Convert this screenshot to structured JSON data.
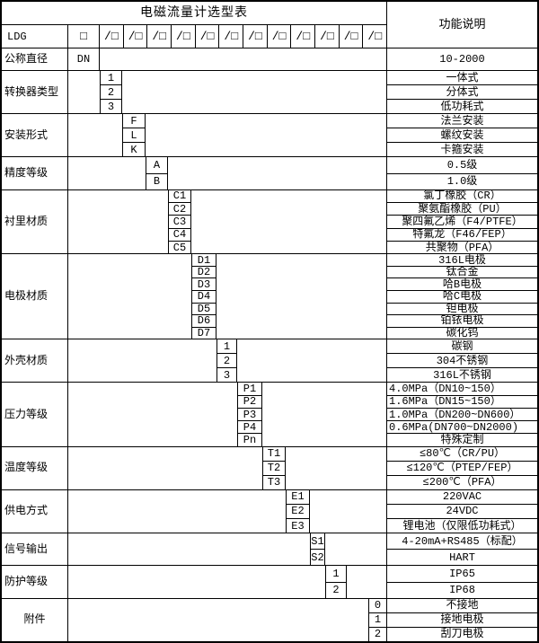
{
  "table": {
    "title": "电磁流量计选型表",
    "function_column_header": "功能说明",
    "model_code": "LDG",
    "code_box_symbol": "□",
    "code_slot_symbol": "/□",
    "code_slot_count": 12,
    "groups": [
      {
        "label": "公称直径",
        "codes": [
          "DN"
        ],
        "functions": [
          "10-2000"
        ]
      },
      {
        "label": "转换器类型",
        "codes": [
          "1",
          "2",
          "3"
        ],
        "functions": [
          "一体式",
          "分体式",
          "低功耗式"
        ]
      },
      {
        "label": "安装形式",
        "codes": [
          "F",
          "L",
          "K"
        ],
        "functions": [
          "法兰安装",
          "螺纹安装",
          "卡箍安装"
        ]
      },
      {
        "label": "精度等级",
        "codes": [
          "A",
          "B"
        ],
        "functions": [
          "0.5级",
          "1.0级"
        ]
      },
      {
        "label": "衬里材质",
        "codes": [
          "C1",
          "C2",
          "C3",
          "C4",
          "C5"
        ],
        "functions": [
          "氯丁橡胶（CR）",
          "聚氨酯橡胶（PU）",
          "聚四氟乙烯（F4/PTFE）",
          "特氟龙（F46/FEP）",
          "共聚物（PFA）"
        ]
      },
      {
        "label": "电极材质",
        "codes": [
          "D1",
          "D2",
          "D3",
          "D4",
          "D5",
          "D6",
          "D7"
        ],
        "functions": [
          "316L电极",
          "钛合金",
          "哈B电极",
          "哈C电极",
          "钽电极",
          "铂铱电极",
          "碳化钨"
        ]
      },
      {
        "label": "外壳材质",
        "codes": [
          "1",
          "2",
          "3"
        ],
        "functions": [
          "碳钢",
          "304不锈钢",
          "316L不锈钢"
        ]
      },
      {
        "label": "压力等级",
        "codes": [
          "P1",
          "P2",
          "P3",
          "P4",
          "Pn"
        ],
        "functions": [
          "4.0MPa（DN10~150）",
          "1.6MPa（DN15~150）",
          "1.0MPa（DN200~DN600）",
          "0.6MPa(DN700~DN2000)",
          "特殊定制"
        ]
      },
      {
        "label": "温度等级",
        "codes": [
          "T1",
          "T2",
          "T3"
        ],
        "functions": [
          "≤80℃（CR/PU）",
          "≤120℃（PTEP/FEP）",
          "≤200℃（PFA）"
        ]
      },
      {
        "label": "供电方式",
        "codes": [
          "E1",
          "E2",
          "E3"
        ],
        "functions": [
          "220VAC",
          "24VDC",
          "锂电池（仅限低功耗式）"
        ]
      },
      {
        "label": "信号输出",
        "codes": [
          "S1",
          "S2"
        ],
        "functions": [
          "4-20mA+RS485（标配）",
          "HART"
        ]
      },
      {
        "label": "防护等级",
        "codes": [
          "1",
          "2"
        ],
        "functions": [
          "IP65",
          "IP68"
        ]
      },
      {
        "label": "附件",
        "codes": [
          "0",
          "1",
          "2"
        ],
        "functions": [
          "不接地",
          "接地电极",
          "刮刀电极"
        ]
      }
    ]
  }
}
